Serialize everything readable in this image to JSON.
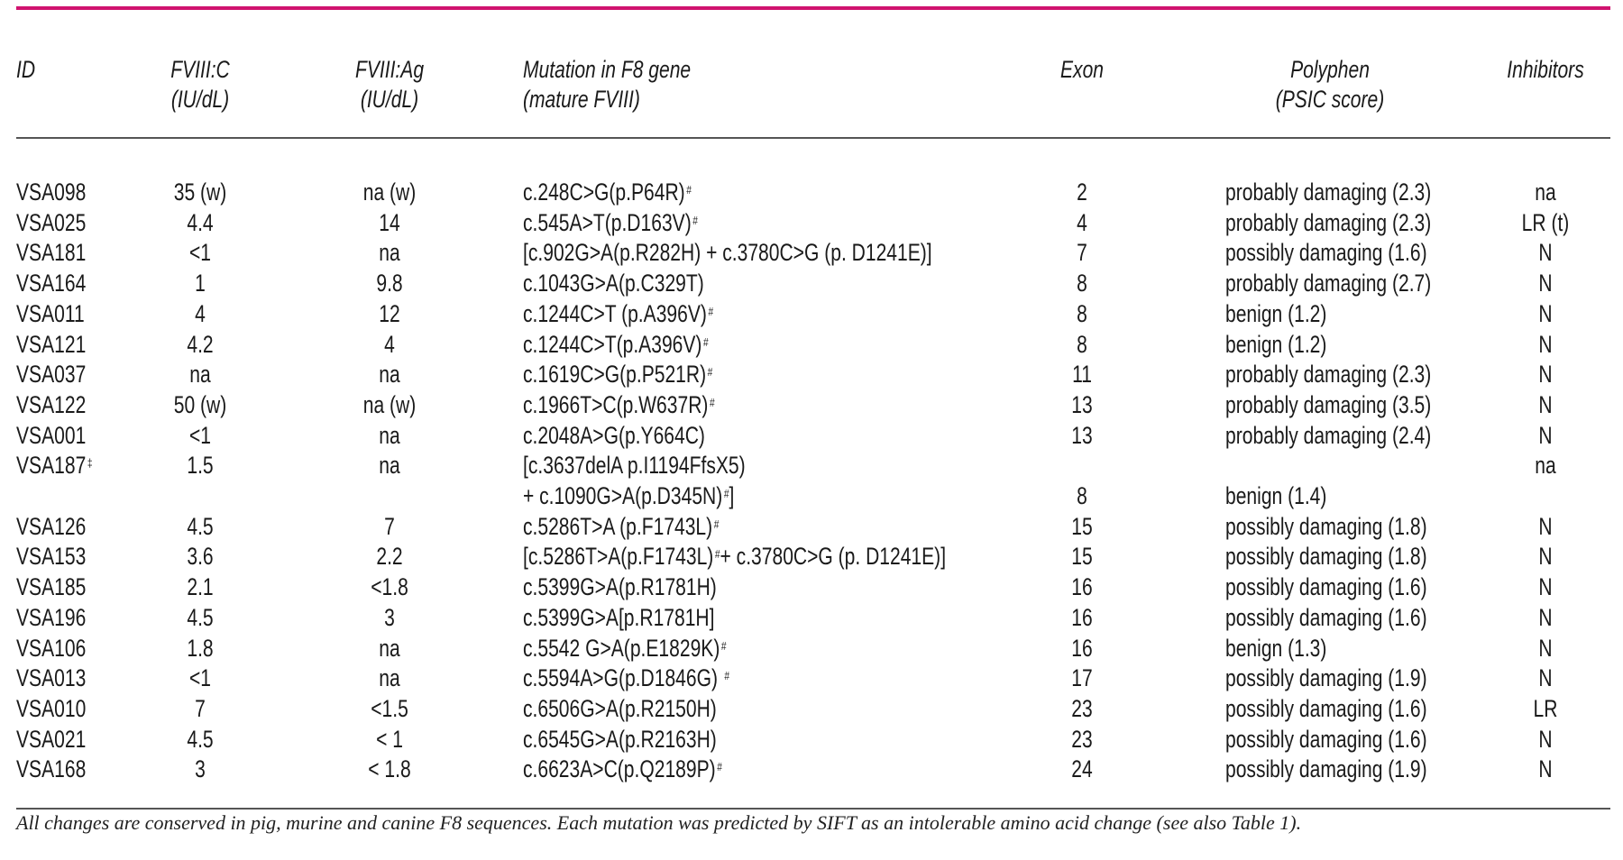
{
  "colors": {
    "accent_rule": "#d0136f",
    "rule": "#555555"
  },
  "headers": {
    "id": [
      "ID"
    ],
    "fviii_c": [
      "FVIII:C",
      "(IU/dL)"
    ],
    "fviii_ag": [
      "FVIII:Ag",
      "(IU/dL)"
    ],
    "mutation": [
      "Mutation in F8 gene",
      "(mature FVIII)"
    ],
    "exon": [
      "Exon"
    ],
    "polyphen": [
      "Polyphen",
      "(PSIC score)"
    ],
    "inhibitors": [
      "Inhibitors"
    ]
  },
  "rows": [
    {
      "id": "VSA098",
      "fviii_c": "35 (w)",
      "fviii_ag": "na (w)",
      "mutation": [
        {
          "t": "c.248C>G(p.P64R)"
        },
        {
          "s": "#"
        }
      ],
      "exon": "2",
      "polyphen": "probably damaging (2.3)",
      "inhibitors": "na"
    },
    {
      "id": "VSA025",
      "fviii_c": "4.4",
      "fviii_ag": "14",
      "mutation": [
        {
          "t": "c.545A>T(p.D163V)"
        },
        {
          "s": "#"
        }
      ],
      "exon": "4",
      "polyphen": "probably damaging (2.3)",
      "inhibitors": "LR (t)"
    },
    {
      "id": "VSA181",
      "fviii_c": "<1",
      "fviii_ag": "na",
      "mutation": [
        {
          "t": "[c.902G>A(p.R282H) + c.3780C>G (p. D1241E)]"
        }
      ],
      "exon": "7",
      "polyphen": "possibly damaging (1.6)",
      "inhibitors": "N"
    },
    {
      "id": "VSA164",
      "fviii_c": "1",
      "fviii_ag": "9.8",
      "mutation": [
        {
          "t": "c.1043G>A(p.C329T)"
        }
      ],
      "exon": "8",
      "polyphen": "probably damaging (2.7)",
      "inhibitors": "N"
    },
    {
      "id": "VSA011",
      "fviii_c": "4",
      "fviii_ag": "12",
      "mutation": [
        {
          "t": "c.1244C>T (p.A396V)"
        },
        {
          "s": "#"
        }
      ],
      "exon": "8",
      "polyphen": "benign (1.2)",
      "inhibitors": "N"
    },
    {
      "id": "VSA121",
      "fviii_c": "4.2",
      "fviii_ag": "4",
      "mutation": [
        {
          "t": "c.1244C>T(p.A396V)"
        },
        {
          "s": "#"
        }
      ],
      "exon": "8",
      "polyphen": "benign (1.2)",
      "inhibitors": "N"
    },
    {
      "id": "VSA037",
      "fviii_c": "na",
      "fviii_ag": "na",
      "mutation": [
        {
          "t": "c.1619C>G(p.P521R)"
        },
        {
          "s": "#"
        }
      ],
      "exon": "11",
      "polyphen": "probably damaging (2.3)",
      "inhibitors": "N"
    },
    {
      "id": "VSA122",
      "fviii_c": "50 (w)",
      "fviii_ag": "na (w)",
      "mutation": [
        {
          "t": "c.1966T>C(p.W637R)"
        },
        {
          "s": "#"
        }
      ],
      "exon": "13",
      "polyphen": "probably damaging (3.5)",
      "inhibitors": "N"
    },
    {
      "id": "VSA001",
      "fviii_c": "<1",
      "fviii_ag": "na",
      "mutation": [
        {
          "t": "c.2048A>G(p.Y664C)"
        }
      ],
      "exon": "13",
      "polyphen": "probably damaging (2.4)",
      "inhibitors": "N"
    },
    {
      "id": "VSA187",
      "id_sup": "‡",
      "fviii_c": "1.5",
      "fviii_ag": "na",
      "mutation": [
        {
          "t": "[c.3637delA p.I1194FfsX5)"
        }
      ],
      "mutation_line2": [
        {
          "t": "+ c.1090G>A(p.D345N)"
        },
        {
          "s": "#"
        },
        {
          "t": "]"
        }
      ],
      "exon": "8",
      "polyphen": "benign (1.4)",
      "inhibitors": "na"
    },
    {
      "id": "VSA126",
      "fviii_c": "4.5",
      "fviii_ag": "7",
      "mutation": [
        {
          "t": "c.5286T>A (p.F1743L)"
        },
        {
          "s": "#"
        }
      ],
      "exon": "15",
      "polyphen": "possibly damaging (1.8)",
      "inhibitors": "N"
    },
    {
      "id": "VSA153",
      "fviii_c": "3.6",
      "fviii_ag": "2.2",
      "mutation": [
        {
          "t": "[c.5286T>A(p.F1743L)"
        },
        {
          "s": "#"
        },
        {
          "t": "+ c.3780C>G (p. D1241E)]"
        }
      ],
      "exon": "15",
      "polyphen": "possibly damaging (1.8)",
      "inhibitors": "N"
    },
    {
      "id": "VSA185",
      "fviii_c": "2.1",
      "fviii_ag": "<1.8",
      "mutation": [
        {
          "t": "c.5399G>A(p.R1781H)"
        }
      ],
      "exon": "16",
      "polyphen": "possibly damaging (1.6)",
      "inhibitors": "N"
    },
    {
      "id": "VSA196",
      "fviii_c": "4.5",
      "fviii_ag": "3",
      "mutation": [
        {
          "t": "c.5399G>A[p.R1781H]"
        }
      ],
      "exon": "16",
      "polyphen": "possibly damaging (1.6)",
      "inhibitors": "N"
    },
    {
      "id": "VSA106",
      "fviii_c": "1.8",
      "fviii_ag": "na",
      "mutation": [
        {
          "t": "c.5542 G>A(p.E1829K)"
        },
        {
          "s": "#"
        }
      ],
      "exon": "16",
      "polyphen": "benign (1.3)",
      "inhibitors": "N"
    },
    {
      "id": "VSA013",
      "fviii_c": "<1",
      "fviii_ag": "na",
      "mutation": [
        {
          "t": "c.5594A>G(p.D1846G) "
        },
        {
          "s": "#"
        }
      ],
      "exon": "17",
      "polyphen": "possibly damaging (1.9)",
      "inhibitors": "N"
    },
    {
      "id": "VSA010",
      "fviii_c": "7",
      "fviii_ag": "<1.5",
      "mutation": [
        {
          "t": "c.6506G>A(p.R2150H)"
        }
      ],
      "exon": "23",
      "polyphen": "possibly damaging (1.6)",
      "inhibitors": "LR"
    },
    {
      "id": "VSA021",
      "fviii_c": "4.5",
      "fviii_ag": "< 1",
      "mutation": [
        {
          "t": "c.6545G>A(p.R2163H)"
        }
      ],
      "exon": "23",
      "polyphen": "possibly damaging (1.6)",
      "inhibitors": "N"
    },
    {
      "id": "VSA168",
      "fviii_c": "3",
      "fviii_ag": "< 1.8",
      "mutation": [
        {
          "t": "c.6623A>C(p.Q2189P)"
        },
        {
          "s": "#"
        }
      ],
      "exon": "24",
      "polyphen": "possibly damaging (1.9)",
      "inhibitors": "N"
    }
  ],
  "footnote": "All changes are conserved in pig, murine and canine F8 sequences. Each mutation was predicted by SIFT as an intolerable amino acid change (see also Table 1)."
}
